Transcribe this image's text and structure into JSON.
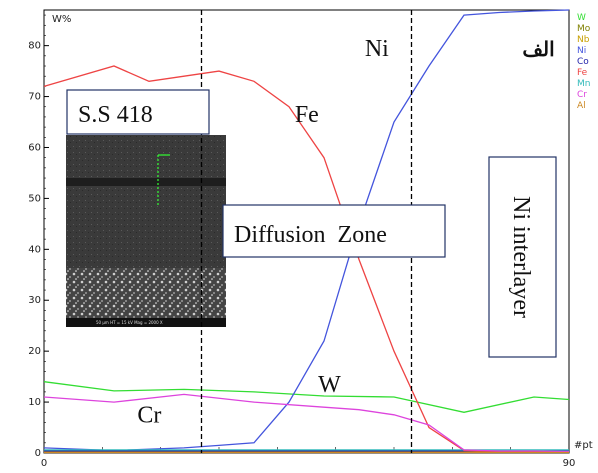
{
  "chart_data": {
    "type": "line",
    "y_unit_label": "W%",
    "x_unit_label": "#pt",
    "xlim": [
      0,
      90
    ],
    "ylim": [
      0,
      87
    ],
    "y_ticks": [
      0,
      10,
      20,
      30,
      40,
      50,
      60,
      70,
      80
    ],
    "x_tick_labels": [
      {
        "value": 0,
        "label": "0"
      },
      {
        "value": 90,
        "label": "90"
      }
    ],
    "series": [
      {
        "name": "W",
        "color": "#33dd33",
        "x": [
          0,
          12,
          24,
          36,
          48,
          60,
          72,
          84,
          90
        ],
        "y": [
          14,
          12.2,
          12.5,
          12,
          11.2,
          11,
          8,
          11,
          10.5
        ]
      },
      {
        "name": "Mo",
        "color": "#808000",
        "x": [
          0,
          90
        ],
        "y": [
          0.2,
          0.2
        ]
      },
      {
        "name": "Nb",
        "color": "#c8a000",
        "x": [
          0,
          90
        ],
        "y": [
          0.3,
          0.3
        ]
      },
      {
        "name": "Ni",
        "color": "#4455dd",
        "x": [
          0,
          12,
          24,
          30,
          36,
          42,
          48,
          54,
          60,
          66,
          72,
          78,
          84,
          90
        ],
        "y": [
          1,
          0.5,
          1,
          1.5,
          2,
          10,
          22,
          45,
          65,
          76,
          86,
          86.5,
          86.8,
          87
        ]
      },
      {
        "name": "Co",
        "color": "#2222aa",
        "x": [
          0,
          90
        ],
        "y": [
          0.4,
          0.4
        ]
      },
      {
        "name": "Fe",
        "color": "#ee4444",
        "x": [
          0,
          12,
          18,
          24,
          30,
          36,
          42,
          48,
          54,
          60,
          66,
          72,
          78,
          84,
          90
        ],
        "y": [
          72,
          76,
          73,
          74,
          75,
          73,
          68,
          58,
          38,
          20,
          5,
          0.5,
          0.3,
          0.2,
          0.2
        ]
      },
      {
        "name": "Mn",
        "color": "#33bbbb",
        "x": [
          0,
          90
        ],
        "y": [
          0.6,
          0.6
        ]
      },
      {
        "name": "Cr",
        "color": "#dd44dd",
        "x": [
          0,
          12,
          24,
          36,
          48,
          54,
          60,
          66,
          72,
          78,
          84,
          90
        ],
        "y": [
          11,
          10,
          11.5,
          10,
          9,
          8.5,
          7.5,
          5.5,
          0.6,
          0.4,
          0.4,
          0.3
        ]
      },
      {
        "name": "Al",
        "color": "#cc8822",
        "x": [
          0,
          90
        ],
        "y": [
          0.1,
          0.1
        ]
      }
    ],
    "vlines_x": [
      27,
      63
    ],
    "annotations": [
      {
        "text": "Ni",
        "x": 55,
        "y": 78
      },
      {
        "text": "Fe",
        "x": 43,
        "y": 65
      },
      {
        "text": "W",
        "x": 47,
        "y": 12
      },
      {
        "text": "Cr",
        "x": 16,
        "y": 6
      },
      {
        "text": "الف",
        "x": 82,
        "y": 78
      }
    ],
    "boxes": [
      {
        "label": "S.S 418",
        "vertical": false
      },
      {
        "label": "Diffusion  Zone",
        "vertical": false
      },
      {
        "label": "Ni interlayer",
        "vertical": true
      }
    ],
    "inset": {
      "scale_text": "50 µm   HT = 15 kV   Mag = 2000 X"
    }
  }
}
